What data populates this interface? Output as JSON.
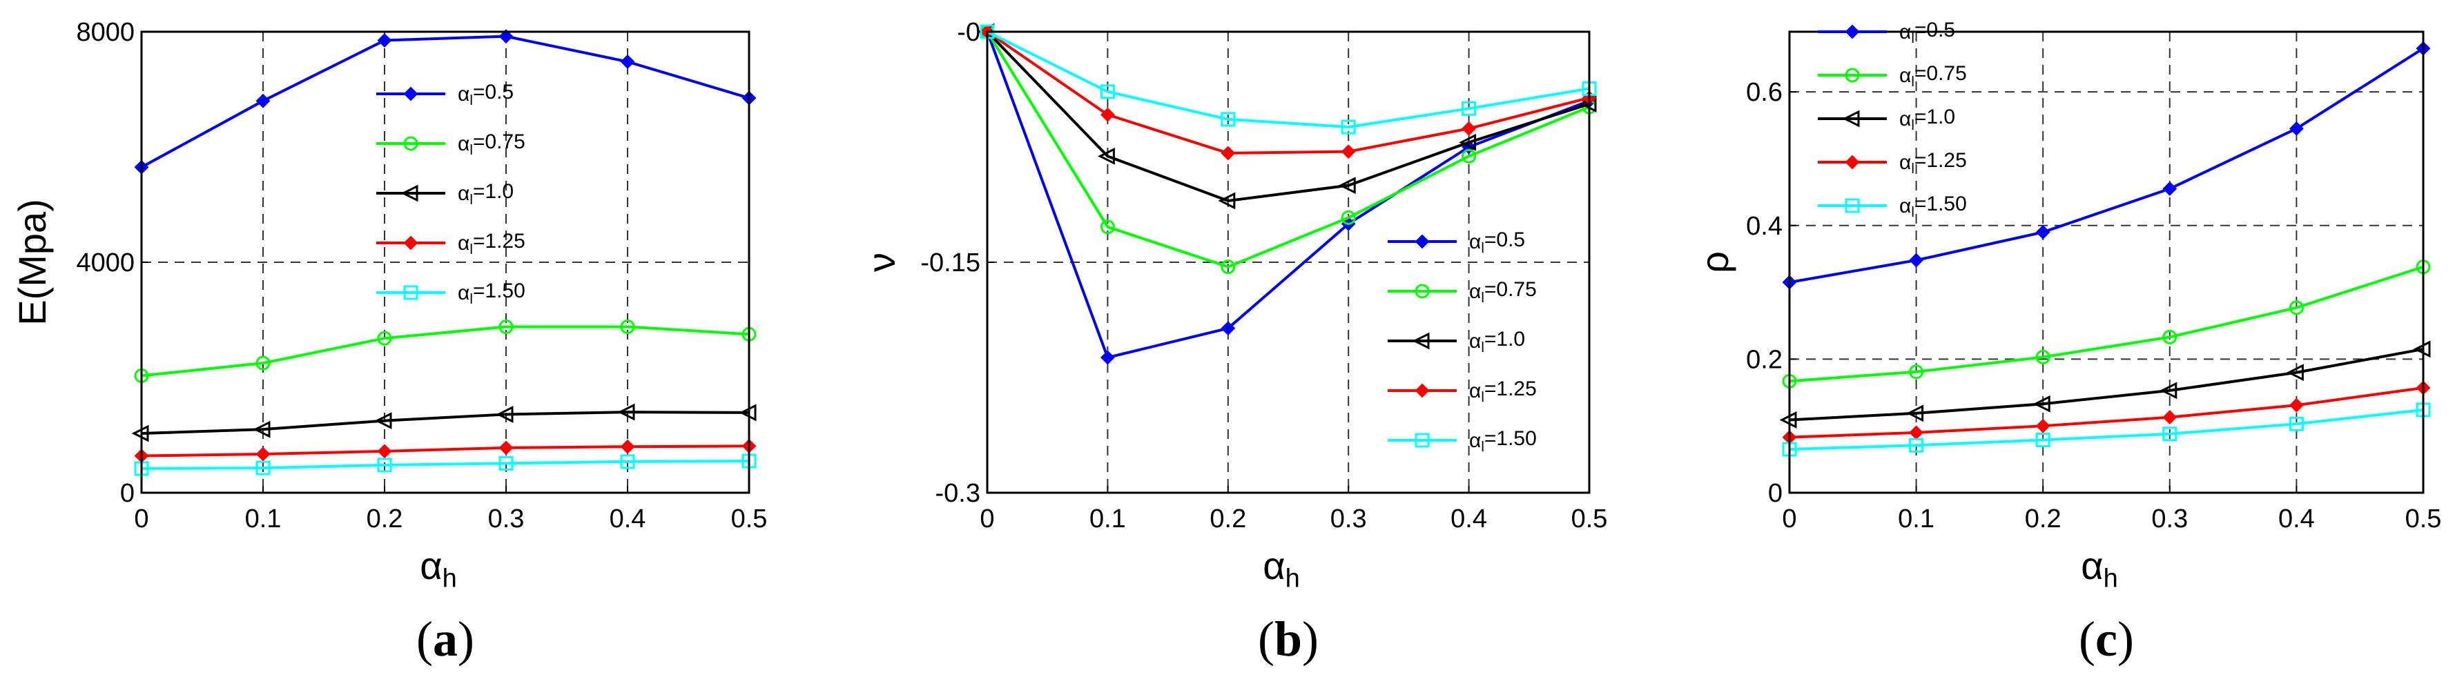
{
  "chart_data": [
    {
      "type": "line",
      "panel_label": "a",
      "xlabel": "α",
      "xlabel_sub": "h",
      "ylabel": "E(Mpa)",
      "x": [
        0,
        0.1,
        0.2,
        0.3,
        0.4,
        0.5
      ],
      "xticks": [
        "0",
        "0.1",
        "0.2",
        "0.3",
        "0.4",
        "0.5"
      ],
      "yticks": [
        "0",
        "4000",
        "8000"
      ],
      "xlim": [
        0,
        0.5
      ],
      "ylim": [
        0,
        8000
      ],
      "grid": "dashed",
      "legend_position": "upper-middle",
      "series": [
        {
          "name": "α",
          "name_sub": "l",
          "name_value": "=0.5",
          "color": "#0000ff",
          "marker": "diamond-filled",
          "values": [
            5650,
            6800,
            7850,
            7920,
            7480,
            6850
          ]
        },
        {
          "name": "α",
          "name_sub": "l",
          "name_value": "=0.75",
          "color": "#00ff00",
          "marker": "circle",
          "values": [
            2030,
            2250,
            2680,
            2880,
            2880,
            2750
          ]
        },
        {
          "name": "α",
          "name_sub": "l",
          "name_value": "=1.0",
          "color": "#000000",
          "marker": "triangle-left",
          "values": [
            1030,
            1100,
            1250,
            1360,
            1400,
            1390
          ]
        },
        {
          "name": "α",
          "name_sub": "l",
          "name_value": "=1.25",
          "color": "#ff0000",
          "marker": "diamond-filled",
          "values": [
            640,
            670,
            720,
            780,
            800,
            810
          ]
        },
        {
          "name": "α",
          "name_sub": "l",
          "name_value": "=1.50",
          "color": "#00ffff",
          "marker": "square",
          "values": [
            420,
            430,
            480,
            510,
            540,
            550
          ]
        }
      ]
    },
    {
      "type": "line",
      "panel_label": "b",
      "xlabel": "α",
      "xlabel_sub": "h",
      "ylabel": "ν",
      "x": [
        0,
        0.1,
        0.2,
        0.3,
        0.4,
        0.5
      ],
      "xticks": [
        "0",
        "0.1",
        "0.2",
        "0.3",
        "0.4",
        "0.5"
      ],
      "yticks": [
        "-0.3",
        "-0.15",
        "-0"
      ],
      "xlim": [
        0,
        0.5
      ],
      "ylim": [
        -0.3,
        0
      ],
      "grid": "dashed",
      "legend_position": "lower-right",
      "series": [
        {
          "name": "α",
          "name_sub": "l",
          "name_value": "=0.5",
          "color": "#0000ff",
          "marker": "diamond-filled",
          "values": [
            0,
            -0.212,
            -0.193,
            -0.125,
            -0.075,
            -0.045
          ]
        },
        {
          "name": "α",
          "name_sub": "l",
          "name_value": "=0.75",
          "color": "#00ff00",
          "marker": "circle",
          "values": [
            0,
            -0.127,
            -0.153,
            -0.121,
            -0.081,
            -0.049
          ]
        },
        {
          "name": "α",
          "name_sub": "l",
          "name_value": "=1.0",
          "color": "#000000",
          "marker": "triangle-left",
          "values": [
            0,
            -0.081,
            -0.11,
            -0.1,
            -0.072,
            -0.047
          ]
        },
        {
          "name": "α",
          "name_sub": "l",
          "name_value": "=1.25",
          "color": "#ff0000",
          "marker": "diamond-filled",
          "values": [
            0,
            -0.054,
            -0.079,
            -0.078,
            -0.063,
            -0.043
          ]
        },
        {
          "name": "α",
          "name_sub": "l",
          "name_value": "=1.50",
          "color": "#00ffff",
          "marker": "square",
          "values": [
            0,
            -0.039,
            -0.057,
            -0.062,
            -0.05,
            -0.037
          ]
        }
      ]
    },
    {
      "type": "line",
      "panel_label": "c",
      "xlabel": "α",
      "xlabel_sub": "h",
      "ylabel": "ρ",
      "x": [
        0,
        0.1,
        0.2,
        0.3,
        0.4,
        0.5
      ],
      "xticks": [
        "0",
        "0.1",
        "0.2",
        "0.3",
        "0.4",
        "0.5"
      ],
      "yticks": [
        "0",
        "0.2",
        "0.4",
        "0.6"
      ],
      "xlim": [
        0,
        0.5
      ],
      "ylim": [
        0,
        0.69
      ],
      "grid": "dashed",
      "legend_position": "upper-left",
      "series": [
        {
          "name": "α",
          "name_sub": "l",
          "name_value": "=0.5",
          "color": "#0000ff",
          "marker": "diamond-filled",
          "values": [
            0.315,
            0.348,
            0.39,
            0.455,
            0.545,
            0.665
          ]
        },
        {
          "name": "α",
          "name_sub": "l",
          "name_value": "=0.75",
          "color": "#00ff00",
          "marker": "circle",
          "values": [
            0.167,
            0.181,
            0.203,
            0.233,
            0.277,
            0.338
          ]
        },
        {
          "name": "α",
          "name_sub": "l",
          "name_value": "=1.0",
          "color": "#000000",
          "marker": "triangle-left",
          "values": [
            0.109,
            0.119,
            0.133,
            0.153,
            0.18,
            0.215
          ]
        },
        {
          "name": "α",
          "name_sub": "l",
          "name_value": "=1.25",
          "color": "#ff0000",
          "marker": "diamond-filled",
          "values": [
            0.083,
            0.09,
            0.1,
            0.113,
            0.131,
            0.157
          ]
        },
        {
          "name": "α",
          "name_sub": "l",
          "name_value": "=1.50",
          "color": "#00ffff",
          "marker": "square",
          "values": [
            0.065,
            0.071,
            0.079,
            0.088,
            0.103,
            0.124
          ]
        }
      ]
    }
  ]
}
